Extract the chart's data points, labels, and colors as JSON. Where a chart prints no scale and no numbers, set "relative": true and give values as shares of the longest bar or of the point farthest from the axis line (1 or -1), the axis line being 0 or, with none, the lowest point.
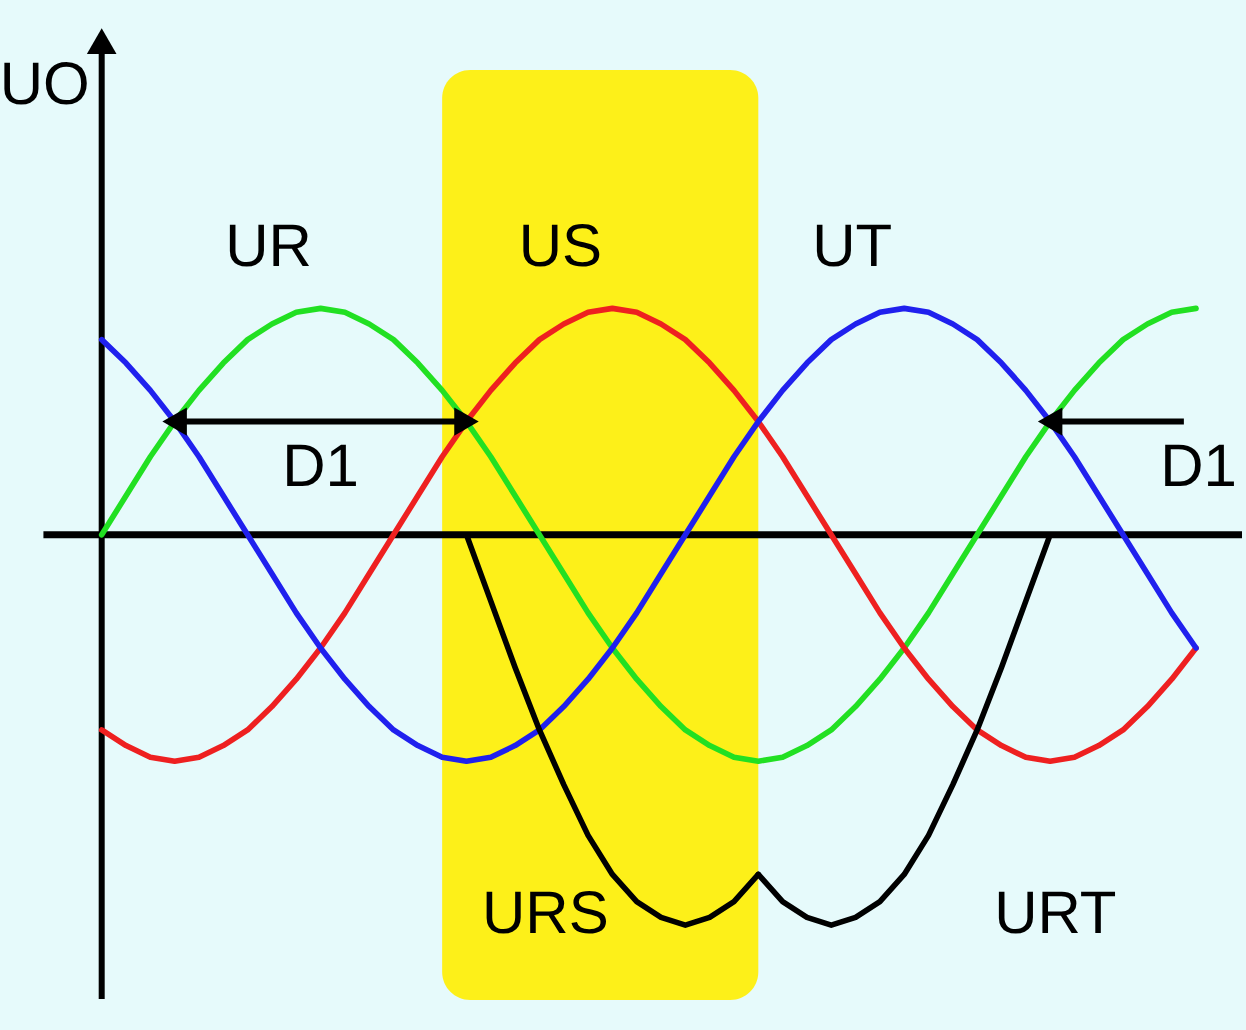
{
  "chart_data": {
    "type": "line",
    "relative": true,
    "ylabel": "UO",
    "line_style": "solid",
    "categories": [
      null,
      null,
      null,
      null,
      null,
      null,
      null,
      null,
      null,
      null,
      null,
      null,
      null,
      null,
      null,
      null,
      null,
      null,
      null,
      null,
      null,
      null,
      null,
      null,
      null,
      null,
      null,
      null,
      null,
      null,
      null,
      null,
      null,
      null,
      null,
      null,
      null,
      null,
      null,
      null,
      null,
      null,
      null,
      null,
      null,
      null
    ],
    "series": [
      {
        "name": "UR",
        "color": "#22e022",
        "values": [
          0,
          0.1,
          0.2,
          0.29,
          0.37,
          0.44,
          0.5,
          0.54,
          0.57,
          0.58,
          0.57,
          0.54,
          0.5,
          0.44,
          0.37,
          0.29,
          0.2,
          0.1,
          0,
          -0.1,
          -0.2,
          -0.29,
          -0.37,
          -0.44,
          -0.5,
          -0.54,
          -0.57,
          -0.58,
          -0.57,
          -0.54,
          -0.5,
          -0.44,
          -0.37,
          -0.29,
          -0.2,
          -0.1,
          0,
          0.1,
          0.2,
          0.29,
          0.37,
          0.44,
          0.5,
          0.54,
          0.57,
          0.58
        ]
      },
      {
        "name": "US",
        "color": "#ee2020",
        "values": [
          -0.5,
          -0.54,
          -0.57,
          -0.58,
          -0.57,
          -0.54,
          -0.5,
          -0.44,
          -0.37,
          -0.29,
          -0.2,
          -0.1,
          0,
          0.1,
          0.2,
          0.29,
          0.37,
          0.44,
          0.5,
          0.54,
          0.57,
          0.58,
          0.57,
          0.54,
          0.5,
          0.44,
          0.37,
          0.29,
          0.2,
          0.1,
          0,
          -0.1,
          -0.2,
          -0.29,
          -0.37,
          -0.44,
          -0.5,
          -0.54,
          -0.57,
          -0.58,
          -0.57,
          -0.54,
          -0.5,
          -0.44,
          -0.37,
          -0.29
        ]
      },
      {
        "name": "UT",
        "color": "#2020ee",
        "values": [
          0.5,
          0.44,
          0.37,
          0.29,
          0.2,
          0.1,
          0,
          -0.1,
          -0.2,
          -0.29,
          -0.37,
          -0.44,
          -0.5,
          -0.54,
          -0.57,
          -0.58,
          -0.57,
          -0.54,
          -0.5,
          -0.44,
          -0.37,
          -0.29,
          -0.2,
          -0.1,
          0,
          0.1,
          0.2,
          0.29,
          0.37,
          0.44,
          0.5,
          0.54,
          0.57,
          0.58,
          0.57,
          0.54,
          0.5,
          0.44,
          0.37,
          0.29,
          0.2,
          0.1,
          0,
          -0.1,
          -0.2,
          -0.29
        ]
      },
      {
        "name": "URS",
        "color": "#000000",
        "values": [
          null,
          null,
          null,
          null,
          null,
          null,
          null,
          null,
          null,
          null,
          null,
          null,
          null,
          null,
          null,
          0,
          -0.17,
          -0.34,
          -0.5,
          -0.64,
          -0.77,
          -0.87,
          -0.94,
          -0.98,
          -1,
          -0.98,
          -0.94,
          -0.87,
          null,
          null,
          null,
          null,
          null,
          null,
          null,
          null,
          null,
          null,
          null,
          null,
          null,
          null,
          null,
          null,
          null,
          null
        ]
      },
      {
        "name": "URT",
        "color": "#000000",
        "values": [
          null,
          null,
          null,
          null,
          null,
          null,
          null,
          null,
          null,
          null,
          null,
          null,
          null,
          null,
          null,
          null,
          null,
          null,
          null,
          null,
          null,
          null,
          null,
          null,
          null,
          null,
          null,
          -0.87,
          -0.94,
          -0.98,
          -1,
          -0.98,
          -0.94,
          -0.87,
          -0.77,
          -0.64,
          -0.5,
          -0.34,
          -0.17,
          0,
          null,
          null,
          null,
          null,
          null,
          null
        ]
      }
    ],
    "annotations": [
      "D1",
      "D1"
    ]
  }
}
